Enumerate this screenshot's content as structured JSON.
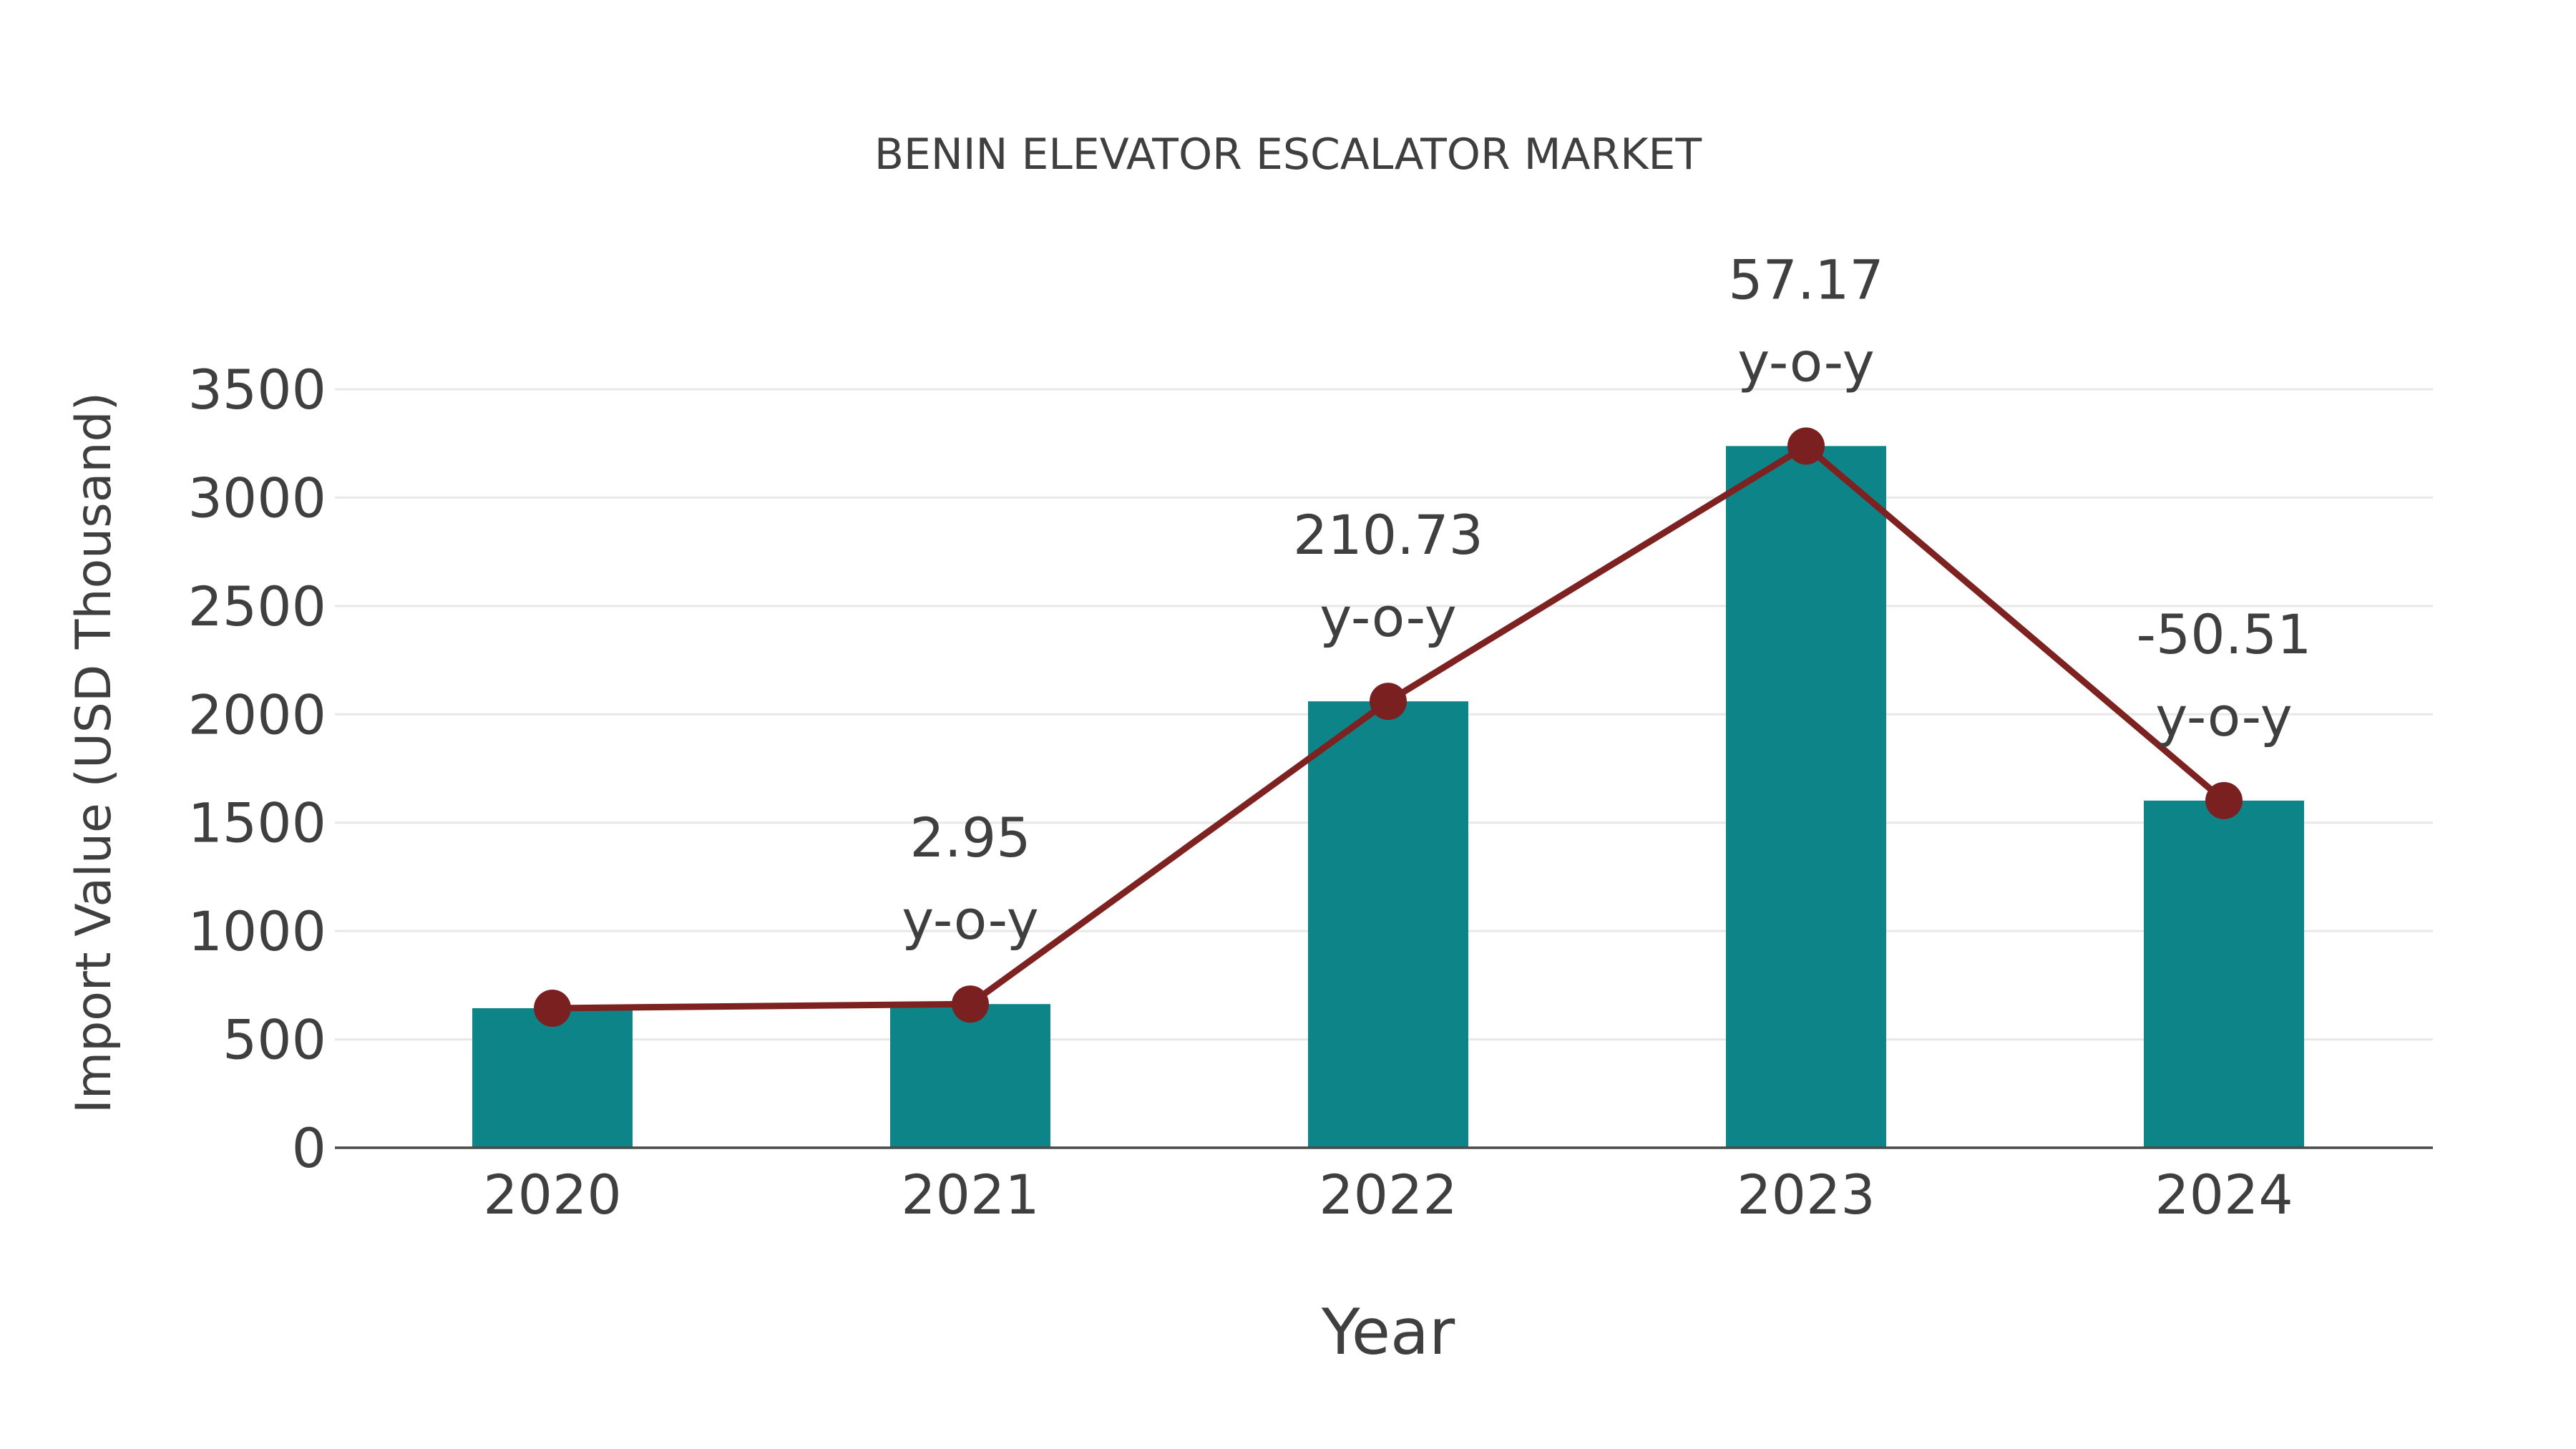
{
  "page": {
    "background": "#ffffff"
  },
  "chart_data": {
    "type": "bar",
    "title": "BENIN ELEVATOR ESCALATOR MARKET",
    "xlabel": "Year",
    "ylabel": "Import Value (USD Thousand)",
    "categories": [
      "2020",
      "2021",
      "2022",
      "2023",
      "2024"
    ],
    "series": [
      {
        "name": "Import Value (USD Thousand)",
        "type": "bar",
        "values": [
          644,
          663,
          2060,
          3238,
          1602
        ],
        "color": "#0d8588"
      },
      {
        "name": "y-o-y",
        "type": "line",
        "values": [
          644,
          663,
          2060,
          3238,
          1602
        ],
        "color": "#7d2121",
        "marker": "circle",
        "marker_color": "#7b2020"
      }
    ],
    "annotations": [
      {
        "category": "2021",
        "value_label": "2.95",
        "suffix_label": "y-o-y"
      },
      {
        "category": "2022",
        "value_label": "210.73",
        "suffix_label": "y-o-y"
      },
      {
        "category": "2023",
        "value_label": "57.17",
        "suffix_label": "y-o-y"
      },
      {
        "category": "2024",
        "value_label": "-50.51",
        "suffix_label": "y-o-y"
      }
    ],
    "yticks": [
      "0",
      "500",
      "1000",
      "1500",
      "2000",
      "2500",
      "3000",
      "3500"
    ],
    "ylim": [
      0,
      3500
    ],
    "grid": true,
    "legend": "none",
    "colors": {
      "grid": "#e8e8e8",
      "axis": "#4a4a4a",
      "text": "#3f3f3f",
      "background": "#ffffff"
    }
  }
}
